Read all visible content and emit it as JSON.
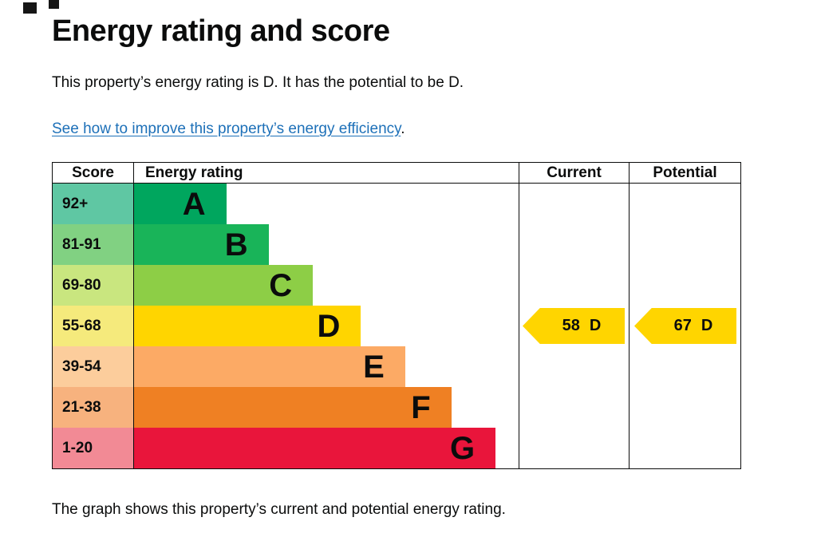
{
  "page": {
    "title": "Energy rating and score",
    "intro": "This property’s energy rating is D. It has the potential to be D.",
    "improve_link": "See how to improve this property’s energy efficiency",
    "link_suffix": ".",
    "caption": "The graph shows this property’s current and potential energy rating."
  },
  "chart_data": {
    "type": "bar",
    "title": "Energy rating and score",
    "columns": [
      "Score",
      "Energy rating",
      "Current",
      "Potential"
    ],
    "bands": [
      {
        "range": "92+",
        "letter": "A",
        "bar_color": "#00a65e",
        "range_color": "#5fc7a3",
        "bar_width_frac": 0.24
      },
      {
        "range": "81-91",
        "letter": "B",
        "bar_color": "#19b459",
        "range_color": "#81d182",
        "bar_width_frac": 0.35
      },
      {
        "range": "69-80",
        "letter": "C",
        "bar_color": "#8dce46",
        "range_color": "#c9e67f",
        "bar_width_frac": 0.465
      },
      {
        "range": "55-68",
        "letter": "D",
        "bar_color": "#ffd500",
        "range_color": "#f5ea7c",
        "bar_width_frac": 0.59
      },
      {
        "range": "39-54",
        "letter": "E",
        "bar_color": "#fcaa65",
        "range_color": "#fccd9c",
        "bar_width_frac": 0.705
      },
      {
        "range": "21-38",
        "letter": "F",
        "bar_color": "#ef8023",
        "range_color": "#f7b27e",
        "bar_width_frac": 0.825
      },
      {
        "range": "1-20",
        "letter": "G",
        "bar_color": "#e9153b",
        "range_color": "#f28a95",
        "bar_width_frac": 0.94
      }
    ],
    "current": {
      "score": "58",
      "rating": "D",
      "band_index": 3,
      "arrow_color": "#ffd500"
    },
    "potential": {
      "score": "67",
      "rating": "D",
      "band_index": 3,
      "arrow_color": "#ffd500"
    }
  },
  "colors": {
    "text": "#0b0c0c",
    "link": "#1d70b8",
    "border": "#0b0c0c"
  }
}
